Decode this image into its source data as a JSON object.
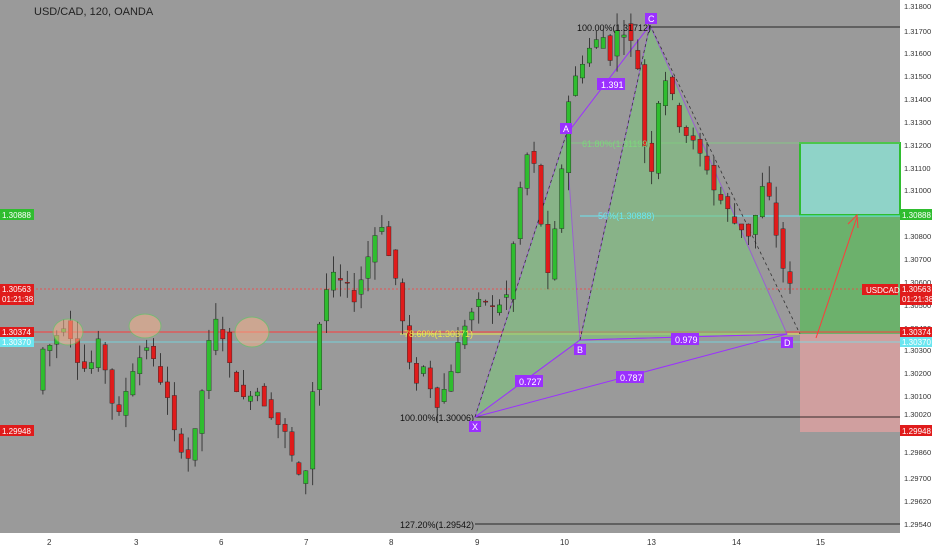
{
  "header": {
    "title": "USD/CAD, 120, OANDA"
  },
  "colors": {
    "background": "#9a9a9a",
    "axis_bg": "#ffffff",
    "up": "#2fbd2f",
    "down": "#e01b1b",
    "pattern": "#9b30ff",
    "pattern_fill": "#7bc97b",
    "fib_line": "#000000",
    "tp_box": "#8fd3c8",
    "tp_box_border": "#2fbd2f",
    "profit_zone": "#5cb85c",
    "loss_zone": "#d9a0a0",
    "resistance": "#ff3b3b",
    "cyan_line": "#6be6f0"
  },
  "price_axis": {
    "ticks": [
      "1.31800",
      "1.31700",
      "1.31600",
      "1.31500",
      "1.31400",
      "1.31300",
      "1.31200",
      "1.31100",
      "1.31000",
      "1.30900",
      "1.30800",
      "1.30700",
      "1.30600",
      "1.30500",
      "1.30400",
      "1.30300",
      "1.30200",
      "1.30100",
      "1.30020",
      "1.29900",
      "1.29860",
      "1.29700",
      "1.29620",
      "1.29540"
    ],
    "badges": {
      "left_green": "1.30888",
      "left_red": "1.30563",
      "left_time": "01:21:38",
      "left_374": "1.30374",
      "left_370": "1.30370",
      "left_948": "1.29948",
      "right_green": "1.30888",
      "right_symbol": "USDCAD",
      "right_price": "1.30563",
      "right_time": "01:21:38",
      "right_374": "1.30374",
      "right_370": "1.30370",
      "right_948": "1.29948"
    }
  },
  "time_axis": {
    "labels": [
      "2",
      "3",
      "6",
      "7",
      "8",
      "9",
      "10",
      "13",
      "14",
      "15"
    ]
  },
  "fib_labels": {
    "top": "100.00%(1.31712)",
    "bottom": "100.00%(1.30006)",
    "ext": "127.20%(1.29542)",
    "mid": "61.80%(1.31199)",
    "cyan": "50%(1.30888)",
    "b78": "78.60%(1.30371)"
  },
  "pattern": {
    "points": {
      "X": "X",
      "A": "A",
      "B": "B",
      "C": "C",
      "D": "D"
    },
    "ratios": {
      "xb": "0.727",
      "ac": "1.391",
      "bd": "0.979",
      "xd": "0.787"
    }
  },
  "chart_data": {
    "type": "candlestick",
    "title": "USD/CAD, 120, OANDA",
    "ylim": [
      1.295,
      1.3182
    ],
    "x_labels": [
      "2",
      "3",
      "6",
      "7",
      "8",
      "9",
      "10",
      "13",
      "14",
      "15"
    ],
    "trend": [
      1.301,
      1.3028,
      1.303,
      1.3035,
      1.304,
      1.3035,
      1.3025,
      1.302,
      1.3022,
      1.303,
      1.302,
      1.3005,
      1.2998,
      1.301,
      1.302,
      1.3025,
      1.303,
      1.3022,
      1.3015,
      1.3005,
      1.299,
      1.2985,
      1.298,
      1.299,
      1.301,
      1.303,
      1.304,
      1.3035,
      1.302,
      1.3012,
      1.3005,
      1.301,
      1.301,
      1.3005,
      1.3,
      1.2995,
      1.299,
      1.298,
      1.297,
      1.2975,
      1.301,
      1.304,
      1.3055,
      1.306,
      1.3058,
      1.3055,
      1.3052,
      1.306,
      1.307,
      1.308,
      1.3085,
      1.307,
      1.306,
      1.304,
      1.302,
      1.3015,
      1.302,
      1.3012,
      1.3005,
      1.301,
      1.302,
      1.303,
      1.304,
      1.3045,
      1.3048,
      1.305,
      1.3046,
      1.3049,
      1.3052,
      1.3075,
      1.31,
      1.3115,
      1.311,
      1.3085,
      1.306,
      1.308,
      1.311,
      1.314,
      1.315,
      1.3158,
      1.3163,
      1.3166,
      1.3168,
      1.316,
      1.317,
      1.3172,
      1.3165,
      1.3155,
      1.312,
      1.311,
      1.314,
      1.315,
      1.314,
      1.313,
      1.3125,
      1.312,
      1.3115,
      1.311,
      1.31,
      1.3095,
      1.309,
      1.3085,
      1.3083,
      1.308,
      1.3088,
      1.31,
      1.3095,
      1.308,
      1.3065,
      1.3056
    ]
  }
}
